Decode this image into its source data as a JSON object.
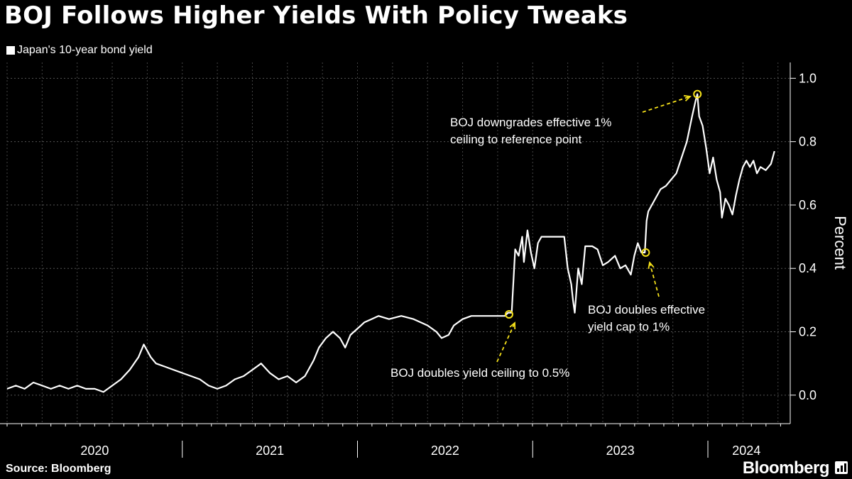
{
  "header": {
    "title": "BOJ Follows Higher Yields With Policy Tweaks"
  },
  "footer": {
    "source": "Source: Bloomberg",
    "brand": "Bloomberg"
  },
  "colors": {
    "background": "#000000",
    "line": "#ffffff",
    "annotation": "#f5e11a",
    "grid": "#555555"
  },
  "chart_data": {
    "type": "line",
    "title": "BOJ Follows Higher Yields With Policy Tweaks",
    "ylabel": "Percent",
    "ylim": [
      -0.09,
      1.05
    ],
    "yticks": [
      0.0,
      0.2,
      0.4,
      0.6,
      0.8,
      1.0
    ],
    "ytick_labels": [
      "0.0",
      "0.2",
      "0.4",
      "0.6",
      "0.8",
      "1.0"
    ],
    "xlim": [
      2020.0,
      2024.47
    ],
    "xtick_labels": [
      {
        "label": "2020",
        "x": 2020.5
      },
      {
        "label": "2021",
        "x": 2021.5
      },
      {
        "label": "2022",
        "x": 2022.5
      },
      {
        "label": "2023",
        "x": 2023.5
      },
      {
        "label": "2024",
        "x": 2024.22
      }
    ],
    "year_boundaries": [
      2021.0,
      2022.0,
      2023.0,
      2024.0
    ],
    "grid": true,
    "legend_position": "top-left",
    "series": [
      {
        "name": "Japan's 10-year bond yield",
        "points": [
          [
            2020.0,
            0.02
          ],
          [
            2020.05,
            0.03
          ],
          [
            2020.1,
            0.02
          ],
          [
            2020.15,
            0.04
          ],
          [
            2020.2,
            0.03
          ],
          [
            2020.25,
            0.02
          ],
          [
            2020.3,
            0.03
          ],
          [
            2020.35,
            0.02
          ],
          [
            2020.4,
            0.03
          ],
          [
            2020.45,
            0.02
          ],
          [
            2020.5,
            0.02
          ],
          [
            2020.55,
            0.01
          ],
          [
            2020.6,
            0.03
          ],
          [
            2020.65,
            0.05
          ],
          [
            2020.7,
            0.08
          ],
          [
            2020.75,
            0.12
          ],
          [
            2020.78,
            0.16
          ],
          [
            2020.82,
            0.12
          ],
          [
            2020.85,
            0.1
          ],
          [
            2020.9,
            0.09
          ],
          [
            2020.95,
            0.08
          ],
          [
            2021.0,
            0.07
          ],
          [
            2021.05,
            0.06
          ],
          [
            2021.1,
            0.05
          ],
          [
            2021.15,
            0.03
          ],
          [
            2021.2,
            0.02
          ],
          [
            2021.25,
            0.03
          ],
          [
            2021.3,
            0.05
          ],
          [
            2021.35,
            0.06
          ],
          [
            2021.4,
            0.08
          ],
          [
            2021.45,
            0.1
          ],
          [
            2021.5,
            0.07
          ],
          [
            2021.55,
            0.05
          ],
          [
            2021.6,
            0.06
          ],
          [
            2021.65,
            0.04
          ],
          [
            2021.7,
            0.06
          ],
          [
            2021.75,
            0.11
          ],
          [
            2021.78,
            0.15
          ],
          [
            2021.82,
            0.18
          ],
          [
            2021.86,
            0.2
          ],
          [
            2021.9,
            0.18
          ],
          [
            2021.93,
            0.15
          ],
          [
            2021.96,
            0.19
          ],
          [
            2022.0,
            0.21
          ],
          [
            2022.04,
            0.23
          ],
          [
            2022.08,
            0.24
          ],
          [
            2022.12,
            0.25
          ],
          [
            2022.18,
            0.24
          ],
          [
            2022.25,
            0.25
          ],
          [
            2022.32,
            0.24
          ],
          [
            2022.4,
            0.22
          ],
          [
            2022.45,
            0.2
          ],
          [
            2022.48,
            0.18
          ],
          [
            2022.52,
            0.19
          ],
          [
            2022.55,
            0.22
          ],
          [
            2022.6,
            0.24
          ],
          [
            2022.65,
            0.25
          ],
          [
            2022.7,
            0.25
          ],
          [
            2022.75,
            0.25
          ],
          [
            2022.8,
            0.25
          ],
          [
            2022.84,
            0.25
          ],
          [
            2022.86,
            0.26
          ],
          [
            2022.88,
            0.26
          ],
          [
            2022.9,
            0.46
          ],
          [
            2022.92,
            0.44
          ],
          [
            2022.94,
            0.5
          ],
          [
            2022.95,
            0.42
          ],
          [
            2022.97,
            0.52
          ],
          [
            2022.99,
            0.45
          ],
          [
            2023.01,
            0.4
          ],
          [
            2023.03,
            0.48
          ],
          [
            2023.05,
            0.5
          ],
          [
            2023.1,
            0.5
          ],
          [
            2023.15,
            0.5
          ],
          [
            2023.18,
            0.5
          ],
          [
            2023.2,
            0.4
          ],
          [
            2023.22,
            0.35
          ],
          [
            2023.23,
            0.3
          ],
          [
            2023.24,
            0.26
          ],
          [
            2023.26,
            0.4
          ],
          [
            2023.28,
            0.35
          ],
          [
            2023.3,
            0.47
          ],
          [
            2023.34,
            0.47
          ],
          [
            2023.37,
            0.46
          ],
          [
            2023.4,
            0.41
          ],
          [
            2023.43,
            0.42
          ],
          [
            2023.47,
            0.44
          ],
          [
            2023.5,
            0.4
          ],
          [
            2023.53,
            0.41
          ],
          [
            2023.56,
            0.38
          ],
          [
            2023.58,
            0.44
          ],
          [
            2023.6,
            0.48
          ],
          [
            2023.62,
            0.45
          ],
          [
            2023.64,
            0.45
          ],
          [
            2023.65,
            0.55
          ],
          [
            2023.66,
            0.58
          ],
          [
            2023.68,
            0.6
          ],
          [
            2023.7,
            0.62
          ],
          [
            2023.73,
            0.65
          ],
          [
            2023.76,
            0.66
          ],
          [
            2023.79,
            0.68
          ],
          [
            2023.82,
            0.7
          ],
          [
            2023.85,
            0.75
          ],
          [
            2023.88,
            0.8
          ],
          [
            2023.91,
            0.88
          ],
          [
            2023.93,
            0.93
          ],
          [
            2023.94,
            0.95
          ],
          [
            2023.95,
            0.88
          ],
          [
            2023.97,
            0.85
          ],
          [
            2023.99,
            0.78
          ],
          [
            2024.01,
            0.7
          ],
          [
            2024.03,
            0.75
          ],
          [
            2024.05,
            0.68
          ],
          [
            2024.07,
            0.64
          ],
          [
            2024.08,
            0.56
          ],
          [
            2024.1,
            0.62
          ],
          [
            2024.12,
            0.6
          ],
          [
            2024.14,
            0.57
          ],
          [
            2024.16,
            0.63
          ],
          [
            2024.18,
            0.68
          ],
          [
            2024.2,
            0.72
          ],
          [
            2024.22,
            0.74
          ],
          [
            2024.24,
            0.72
          ],
          [
            2024.26,
            0.74
          ],
          [
            2024.28,
            0.7
          ],
          [
            2024.3,
            0.72
          ],
          [
            2024.33,
            0.71
          ],
          [
            2024.36,
            0.73
          ],
          [
            2024.38,
            0.77
          ]
        ]
      }
    ],
    "annotations": [
      {
        "text_lines": [
          "BOJ doubles yield ceiling to 0.5%"
        ],
        "point": [
          2022.865,
          0.255
        ]
      },
      {
        "text_lines": [
          "BOJ doubles effective",
          "yield cap to 1%"
        ],
        "point": [
          2023.645,
          0.45
        ]
      },
      {
        "text_lines": [
          "BOJ downgrades effective 1%",
          "ceiling to reference point"
        ],
        "point": [
          2023.94,
          0.95
        ]
      }
    ]
  }
}
